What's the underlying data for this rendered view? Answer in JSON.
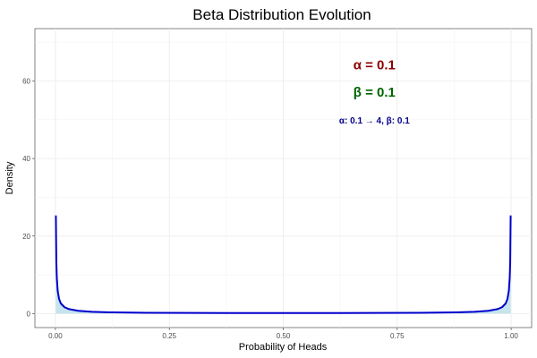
{
  "chart_data": {
    "type": "area",
    "title": "Beta Distribution Evolution",
    "xlabel": "Probability of Heads",
    "ylabel": "Density",
    "xlim": [
      -0.045,
      1.045
    ],
    "ylim": [
      -3.6,
      73.5
    ],
    "x_ticks": [
      0.0,
      0.25,
      0.5,
      0.75,
      1.0
    ],
    "x_tick_labels": [
      "0.00",
      "0.25",
      "0.50",
      "0.75",
      "1.00"
    ],
    "y_ticks": [
      0,
      20,
      40,
      60
    ],
    "y_tick_labels": [
      "0",
      "20",
      "40",
      "60"
    ],
    "grid": true,
    "legend": "none",
    "series": [
      {
        "alpha": 0.1,
        "beta": 0.1,
        "x": [
          0.001,
          0.002,
          0.003,
          0.005,
          0.008,
          0.012,
          0.02,
          0.03,
          0.05,
          0.08,
          0.12,
          0.2,
          0.3,
          0.4,
          0.5,
          0.6,
          0.7,
          0.8,
          0.88,
          0.92,
          0.95,
          0.97,
          0.98,
          0.988,
          0.992,
          0.995,
          0.997,
          0.998,
          0.999
        ],
        "y": [
          25.3,
          13.5,
          9.4,
          5.9,
          3.8,
          2.6,
          1.65,
          1.15,
          0.72,
          0.47,
          0.33,
          0.22,
          0.17,
          0.15,
          0.14,
          0.15,
          0.17,
          0.22,
          0.33,
          0.47,
          0.72,
          1.15,
          1.65,
          2.6,
          3.8,
          5.9,
          9.4,
          13.5,
          25.3
        ],
        "line_color": "#0000cd",
        "fill_color": "#add8e6"
      }
    ],
    "annotations": [
      {
        "text": "α = 0.1",
        "x": 0.7,
        "y": 63,
        "color": "#8b0000"
      },
      {
        "text": "β = 0.1",
        "x": 0.7,
        "y": 56,
        "color": "#006400"
      },
      {
        "text": "α: 0.1 → 4, β: 0.1",
        "x": 0.7,
        "y": 49,
        "color": "#00008b"
      }
    ]
  }
}
